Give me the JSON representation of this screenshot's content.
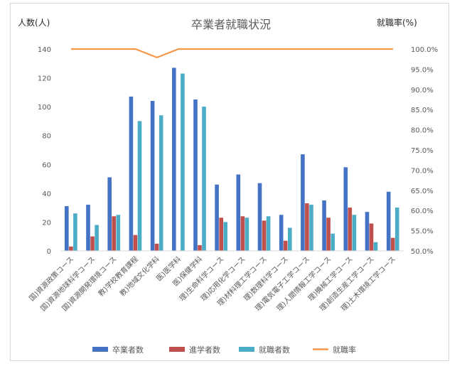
{
  "chart_data": {
    "type": "bar",
    "title": "卒業者就職状況",
    "ylabel_left": "人数(人)",
    "ylabel_right": "就職率(%)",
    "ylim_left": [
      0,
      140
    ],
    "yticks_left": [
      "0",
      "20",
      "40",
      "60",
      "80",
      "100",
      "120",
      "140"
    ],
    "ylim_right": [
      50,
      100
    ],
    "yticks_right": [
      "50.0%",
      "55.0%",
      "60.0%",
      "65.0%",
      "70.0%",
      "75.0%",
      "80.0%",
      "85.0%",
      "90.0%",
      "95.0%",
      "100.0%"
    ],
    "grid": false,
    "legend_position": "bottom",
    "categories": [
      "国)資源政策コース",
      "国)資源地球科学コース",
      "国)資源開発環境コース",
      "教)学校教育課程",
      "教)地域文化学科",
      "医)医学科",
      "医)保健学科",
      "理)生命科学コース",
      "理)応用化学コース",
      "理)材料理工学コース",
      "理)数理科学コース",
      "理)電気電子工学コース",
      "理)人間情報工学コース",
      "理)機械工学コース",
      "理)創造生産工学コース",
      "理)土木環境工学コース"
    ],
    "series": [
      {
        "name": "卒業者数",
        "kind": "bar",
        "axis": "left",
        "color": "#4472C4",
        "values": [
          31,
          32,
          51,
          107,
          104,
          127,
          105,
          46,
          53,
          47,
          25,
          67,
          35,
          58,
          27,
          41
        ]
      },
      {
        "name": "進学者数",
        "kind": "bar",
        "axis": "left",
        "color": "#C0504D",
        "values": [
          3,
          10,
          24,
          11,
          5,
          0,
          4,
          23,
          24,
          21,
          7,
          33,
          23,
          30,
          19,
          9
        ]
      },
      {
        "name": "就職者数",
        "kind": "bar",
        "axis": "left",
        "color": "#4BACC6",
        "values": [
          26,
          18,
          25,
          90,
          94,
          123,
          100,
          20,
          23,
          24,
          16,
          32,
          12,
          25,
          6,
          30
        ]
      },
      {
        "name": "就職率",
        "kind": "line",
        "axis": "right",
        "color": "#F79646",
        "values": [
          100,
          100,
          100,
          100,
          97.9,
          100,
          100,
          100,
          100,
          100,
          100,
          100,
          100,
          100,
          100,
          100
        ]
      }
    ]
  }
}
